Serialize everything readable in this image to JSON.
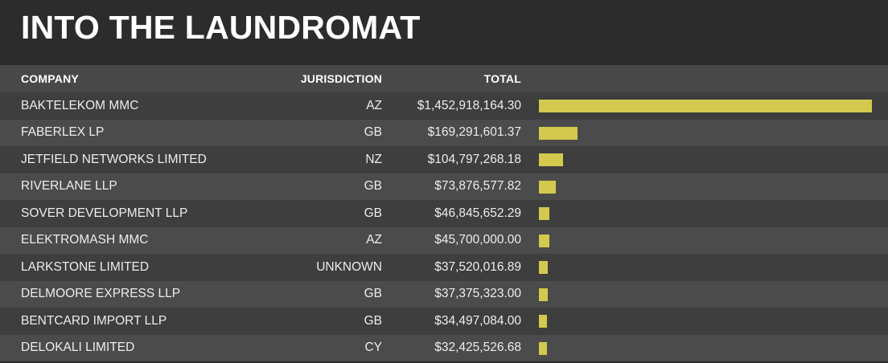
{
  "title": "INTO THE LAUNDROMAT",
  "columns": {
    "company": "COMPANY",
    "jurisdiction": "JURISDICTION",
    "total": "TOTAL"
  },
  "colors": {
    "background": "#2c2c2c",
    "header_row": "#484848",
    "row_dark": "#3e3e3e",
    "row_light": "#4b4b4b",
    "bar": "#d3c94e",
    "text": "#ededed"
  },
  "chart_data": {
    "type": "bar",
    "orientation": "horizontal",
    "categories": [
      "BAKTELEKOM MMC",
      "FABERLEX LP",
      "JETFIELD NETWORKS LIMITED",
      "RIVERLANE LLP",
      "SOVER DEVELOPMENT LLP",
      "ELEKTROMASH MMC",
      "LARKSTONE LIMITED",
      "DELMOORE EXPRESS LLP",
      "BENTCARD IMPORT LLP",
      "DELOKALI LIMITED"
    ],
    "jurisdictions": [
      "AZ",
      "GB",
      "NZ",
      "GB",
      "GB",
      "AZ",
      "UNKNOWN",
      "GB",
      "GB",
      "CY"
    ],
    "total_labels": [
      "$1,452,918,164.30",
      "$169,291,601.37",
      "$104,797,268.18",
      "$73,876,577.82",
      "$46,845,652.29",
      "$45,700,000.00",
      "$37,520,016.89",
      "$37,375,323.00",
      "$34,497,084.00",
      "$32,425,526.68"
    ],
    "values": [
      1452918164.3,
      169291601.37,
      104797268.18,
      73876577.82,
      46845652.29,
      45700000.0,
      37520016.89,
      37375323.0,
      34497084.0,
      32425526.68
    ],
    "title": "INTO THE LAUNDROMAT",
    "xlabel": "",
    "ylabel": "",
    "grid": false,
    "legend": "none"
  }
}
